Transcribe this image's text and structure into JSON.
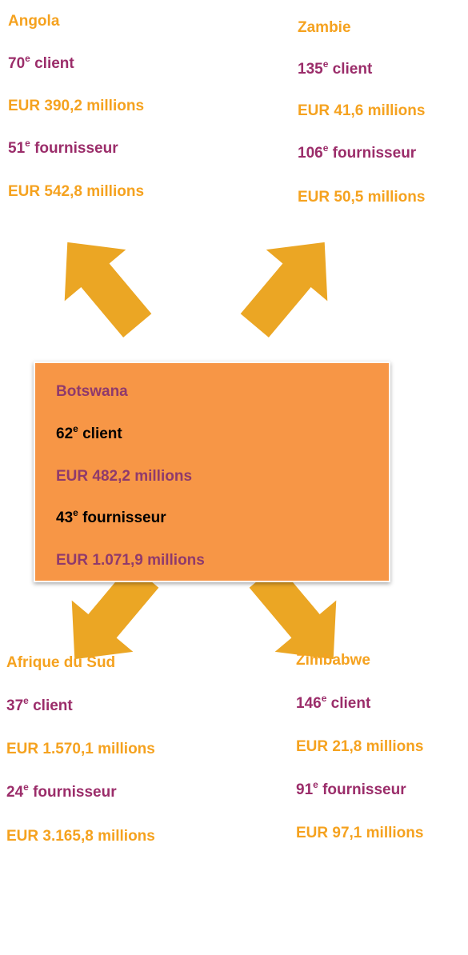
{
  "nodes": [
    {
      "name": "Angola",
      "client_rank": 70,
      "client_suffix": "e",
      "client_label": "client",
      "client_amount": "EUR 390,2 millions",
      "supplier_rank": 51,
      "supplier_suffix": "e",
      "supplier_label": "fournisseur",
      "supplier_amount": "EUR 542,8 millions"
    },
    {
      "name": "Zambie",
      "client_rank": 135,
      "client_suffix": "e",
      "client_label": "client",
      "client_amount": "EUR 41,6 millions",
      "supplier_rank": 106,
      "supplier_suffix": "e",
      "supplier_label": "fournisseur",
      "supplier_amount": "EUR 50,5 millions"
    },
    {
      "name": "Botswana",
      "client_rank": 62,
      "client_suffix": "e",
      "client_label": "client",
      "client_amount": "EUR 482,2 millions",
      "supplier_rank": 43,
      "supplier_suffix": "e",
      "supplier_label": "fournisseur",
      "supplier_amount": "EUR 1.071,9 millions"
    },
    {
      "name": "Afrique du Sud",
      "client_rank": 37,
      "client_suffix": "e",
      "client_label": "client",
      "client_amount": "EUR 1.570,1 millions",
      "supplier_rank": 24,
      "supplier_suffix": "e",
      "supplier_label": "fournisseur",
      "supplier_amount": "EUR 3.165,8 millions"
    },
    {
      "name": "Zimbabwe",
      "client_rank": 146,
      "client_suffix": "e",
      "client_label": "client",
      "client_amount": "EUR 21,8 millions",
      "supplier_rank": 91,
      "supplier_suffix": "e",
      "supplier_label": "fournisseur",
      "supplier_amount": "EUR 97,1 millions"
    }
  ]
}
